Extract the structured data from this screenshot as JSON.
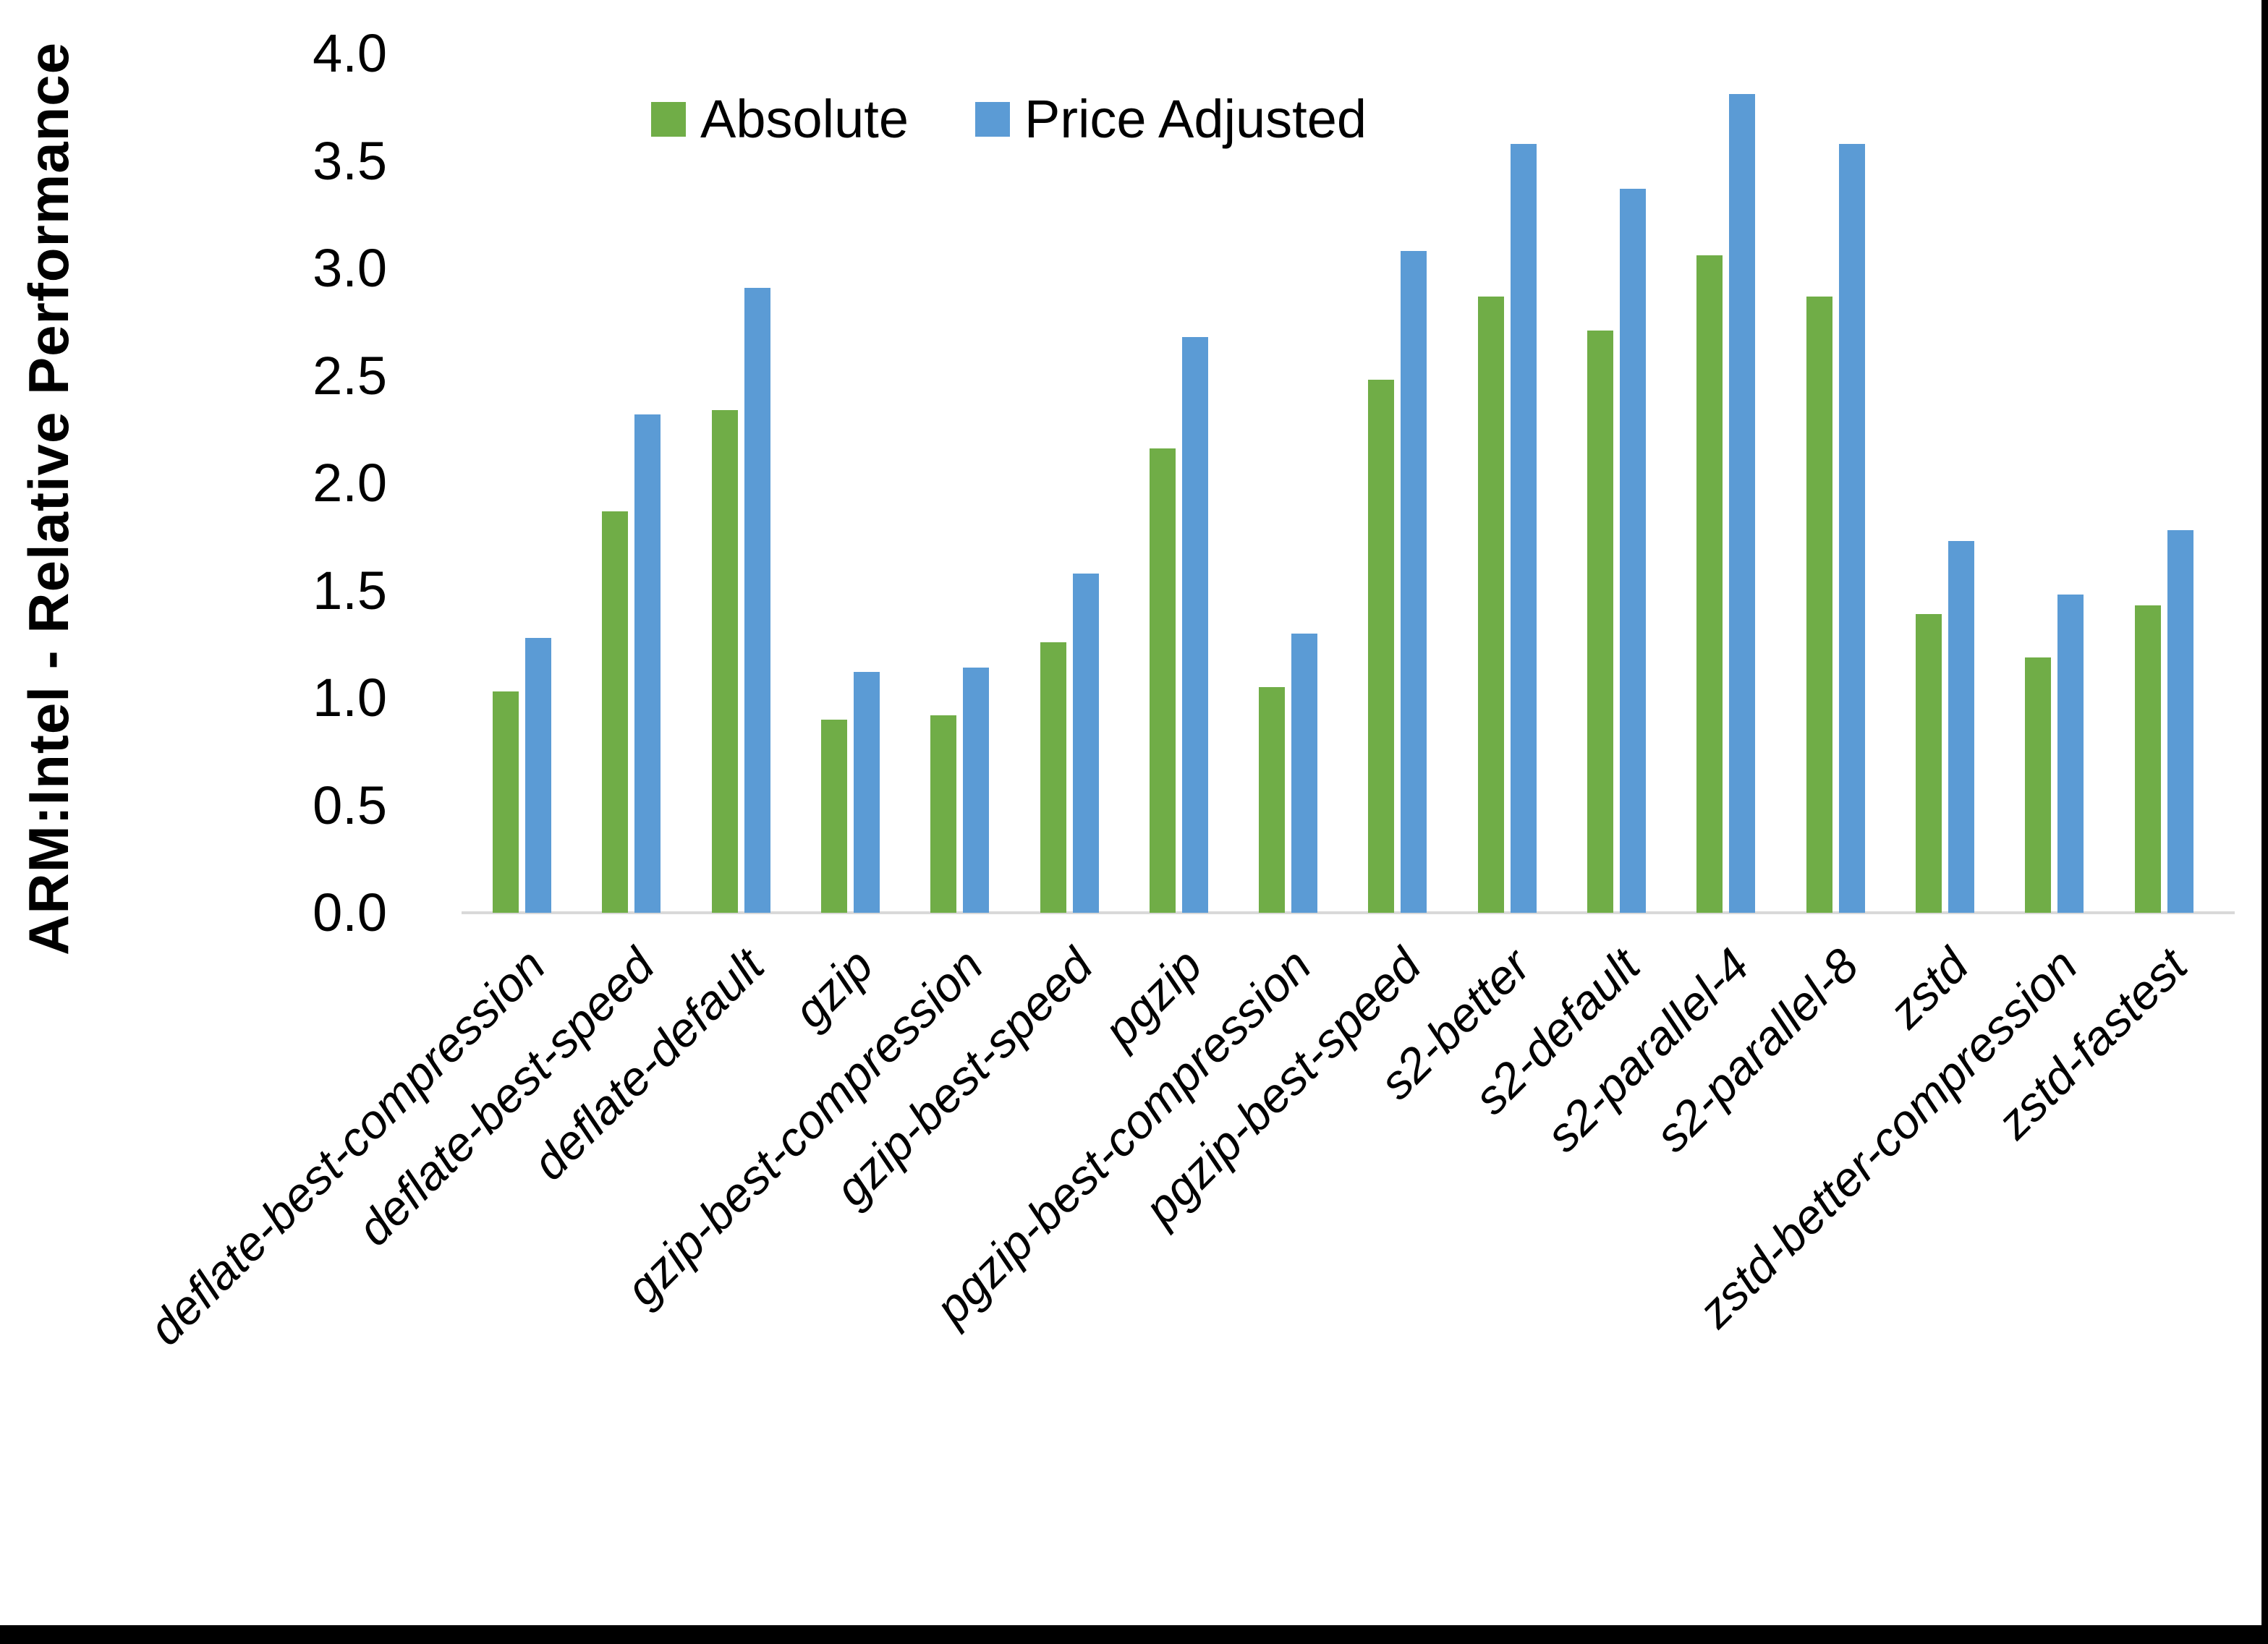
{
  "chart_data": {
    "type": "bar",
    "title": "",
    "ylabel": "ARM:Intel - Relative Performance",
    "xlabel": "",
    "ylim": [
      0.0,
      4.0
    ],
    "ytick_step": 0.5,
    "ytick_labels": [
      "0.0",
      "0.5",
      "1.0",
      "1.5",
      "2.0",
      "2.5",
      "3.0",
      "3.5",
      "4.0"
    ],
    "grid": false,
    "legend_position": "top-center",
    "categories": [
      "deflate-best-compression",
      "deflate-best-speed",
      "deflate-default",
      "gzip",
      "gzip-best-compression",
      "gzip-best-speed",
      "pgzip",
      "pgzip-best-compression",
      "pgzip-best-speed",
      "s2-better",
      "s2-default",
      "s2-parallel-4",
      "s2-parallel-8",
      "zstd",
      "zstd-better-compression",
      "zstd-fastest"
    ],
    "series": [
      {
        "name": "Absolute",
        "color": "#70AD47",
        "values": [
          1.03,
          1.87,
          2.34,
          0.9,
          0.92,
          1.26,
          2.16,
          1.05,
          2.48,
          2.87,
          2.71,
          3.06,
          2.87,
          1.39,
          1.19,
          1.43
        ]
      },
      {
        "name": "Price Adjusted",
        "color": "#5B9BD5",
        "values": [
          1.28,
          2.32,
          2.91,
          1.12,
          1.14,
          1.58,
          2.68,
          1.3,
          3.08,
          3.58,
          3.37,
          3.81,
          3.58,
          1.73,
          1.48,
          1.78
        ]
      }
    ],
    "axis_line_color": "#D9D9D9",
    "text_color": "#000000",
    "background_color": "#FFFFFF",
    "frame_border_color": "#000000"
  }
}
